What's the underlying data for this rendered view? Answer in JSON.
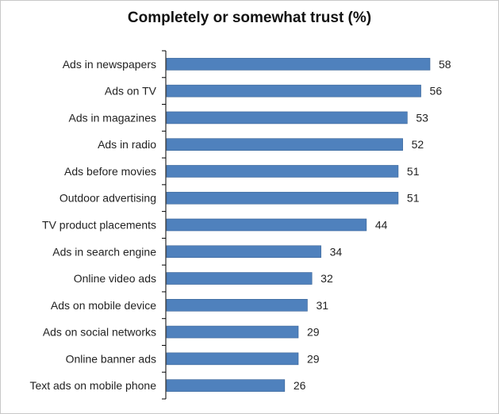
{
  "chart_data": {
    "type": "bar",
    "orientation": "horizontal",
    "title": "Completely or somewhat trust (%)",
    "categories": [
      "Ads in newspapers",
      "Ads on TV",
      "Ads in magazines",
      "Ads in radio",
      "Ads before movies",
      "Outdoor advertising",
      "TV product placements",
      "Ads in search engine",
      "Online video ads",
      "Ads on mobile device",
      "Ads on social networks",
      "Online banner ads",
      "Text ads on mobile phone"
    ],
    "values": [
      58,
      56,
      53,
      52,
      51,
      51,
      44,
      34,
      32,
      31,
      29,
      29,
      26
    ],
    "data_labels": [
      "58",
      "56",
      "53",
      "52",
      "51",
      "51",
      "44",
      "34",
      "32",
      "31",
      "29",
      "29",
      "26"
    ],
    "xlim": [
      0,
      58
    ],
    "grid": false,
    "legend": "none",
    "bar_color": "#4f81bd",
    "bar_edge_color": "#3a6496"
  }
}
